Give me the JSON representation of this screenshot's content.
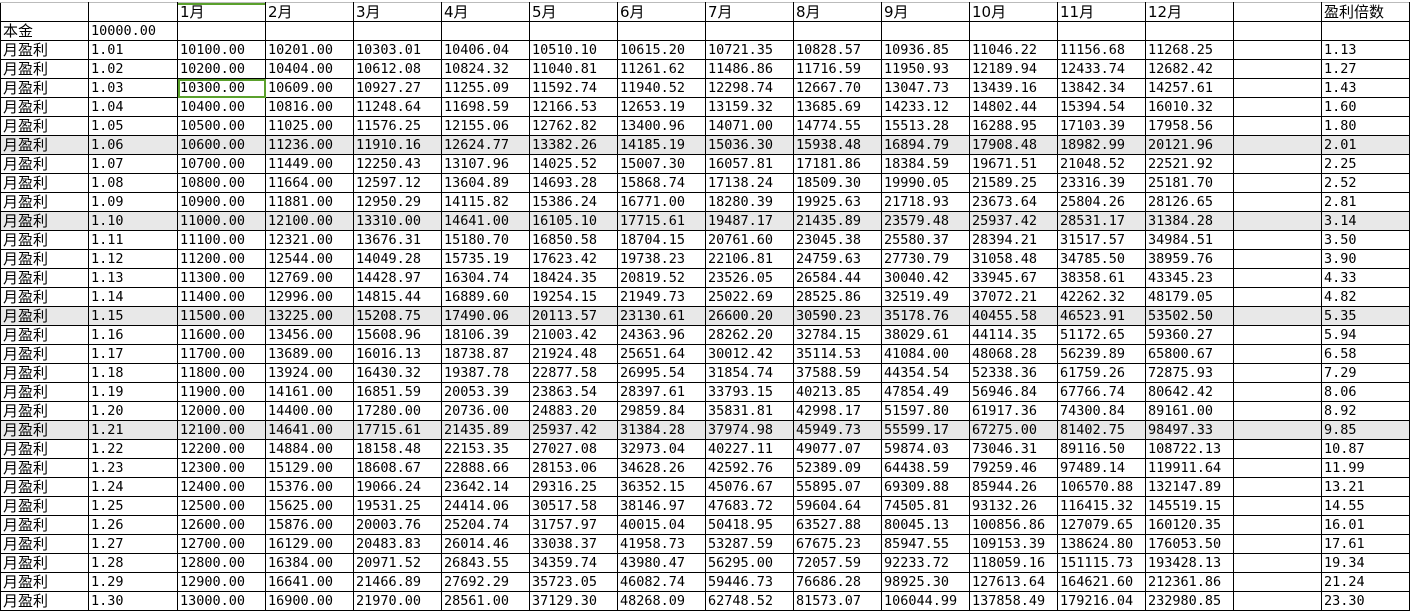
{
  "header": {
    "months": [
      "1月",
      "2月",
      "3月",
      "4月",
      "5月",
      "6月",
      "7月",
      "8月",
      "9月",
      "10月",
      "11月",
      "12月"
    ],
    "multiplier_label": "盈利倍数"
  },
  "principal": {
    "label": "本金",
    "value": "10000.00"
  },
  "row_label": "月盈利",
  "highlight_color": "#e8e8e8",
  "selection_color": "#5aa02c",
  "selected_cell": {
    "rate": "1.03",
    "month": "1月"
  },
  "rows": [
    {
      "rate": "1.01",
      "values": [
        "10100.00",
        "10201.00",
        "10303.01",
        "10406.04",
        "10510.10",
        "10615.20",
        "10721.35",
        "10828.57",
        "10936.85",
        "11046.22",
        "11156.68",
        "11268.25"
      ],
      "multiplier": "1.13",
      "highlighted": false
    },
    {
      "rate": "1.02",
      "values": [
        "10200.00",
        "10404.00",
        "10612.08",
        "10824.32",
        "11040.81",
        "11261.62",
        "11486.86",
        "11716.59",
        "11950.93",
        "12189.94",
        "12433.74",
        "12682.42"
      ],
      "multiplier": "1.27",
      "highlighted": false
    },
    {
      "rate": "1.03",
      "values": [
        "10300.00",
        "10609.00",
        "10927.27",
        "11255.09",
        "11592.74",
        "11940.52",
        "12298.74",
        "12667.70",
        "13047.73",
        "13439.16",
        "13842.34",
        "14257.61"
      ],
      "multiplier": "1.43",
      "highlighted": false
    },
    {
      "rate": "1.04",
      "values": [
        "10400.00",
        "10816.00",
        "11248.64",
        "11698.59",
        "12166.53",
        "12653.19",
        "13159.32",
        "13685.69",
        "14233.12",
        "14802.44",
        "15394.54",
        "16010.32"
      ],
      "multiplier": "1.60",
      "highlighted": false
    },
    {
      "rate": "1.05",
      "values": [
        "10500.00",
        "11025.00",
        "11576.25",
        "12155.06",
        "12762.82",
        "13400.96",
        "14071.00",
        "14774.55",
        "15513.28",
        "16288.95",
        "17103.39",
        "17958.56"
      ],
      "multiplier": "1.80",
      "highlighted": false
    },
    {
      "rate": "1.06",
      "values": [
        "10600.00",
        "11236.00",
        "11910.16",
        "12624.77",
        "13382.26",
        "14185.19",
        "15036.30",
        "15938.48",
        "16894.79",
        "17908.48",
        "18982.99",
        "20121.96"
      ],
      "multiplier": "2.01",
      "highlighted": true
    },
    {
      "rate": "1.07",
      "values": [
        "10700.00",
        "11449.00",
        "12250.43",
        "13107.96",
        "14025.52",
        "15007.30",
        "16057.81",
        "17181.86",
        "18384.59",
        "19671.51",
        "21048.52",
        "22521.92"
      ],
      "multiplier": "2.25",
      "highlighted": false
    },
    {
      "rate": "1.08",
      "values": [
        "10800.00",
        "11664.00",
        "12597.12",
        "13604.89",
        "14693.28",
        "15868.74",
        "17138.24",
        "18509.30",
        "19990.05",
        "21589.25",
        "23316.39",
        "25181.70"
      ],
      "multiplier": "2.52",
      "highlighted": false
    },
    {
      "rate": "1.09",
      "values": [
        "10900.00",
        "11881.00",
        "12950.29",
        "14115.82",
        "15386.24",
        "16771.00",
        "18280.39",
        "19925.63",
        "21718.93",
        "23673.64",
        "25804.26",
        "28126.65"
      ],
      "multiplier": "2.81",
      "highlighted": false
    },
    {
      "rate": "1.10",
      "values": [
        "11000.00",
        "12100.00",
        "13310.00",
        "14641.00",
        "16105.10",
        "17715.61",
        "19487.17",
        "21435.89",
        "23579.48",
        "25937.42",
        "28531.17",
        "31384.28"
      ],
      "multiplier": "3.14",
      "highlighted": true
    },
    {
      "rate": "1.11",
      "values": [
        "11100.00",
        "12321.00",
        "13676.31",
        "15180.70",
        "16850.58",
        "18704.15",
        "20761.60",
        "23045.38",
        "25580.37",
        "28394.21",
        "31517.57",
        "34984.51"
      ],
      "multiplier": "3.50",
      "highlighted": false
    },
    {
      "rate": "1.12",
      "values": [
        "11200.00",
        "12544.00",
        "14049.28",
        "15735.19",
        "17623.42",
        "19738.23",
        "22106.81",
        "24759.63",
        "27730.79",
        "31058.48",
        "34785.50",
        "38959.76"
      ],
      "multiplier": "3.90",
      "highlighted": false
    },
    {
      "rate": "1.13",
      "values": [
        "11300.00",
        "12769.00",
        "14428.97",
        "16304.74",
        "18424.35",
        "20819.52",
        "23526.05",
        "26584.44",
        "30040.42",
        "33945.67",
        "38358.61",
        "43345.23"
      ],
      "multiplier": "4.33",
      "highlighted": false
    },
    {
      "rate": "1.14",
      "values": [
        "11400.00",
        "12996.00",
        "14815.44",
        "16889.60",
        "19254.15",
        "21949.73",
        "25022.69",
        "28525.86",
        "32519.49",
        "37072.21",
        "42262.32",
        "48179.05"
      ],
      "multiplier": "4.82",
      "highlighted": false
    },
    {
      "rate": "1.15",
      "values": [
        "11500.00",
        "13225.00",
        "15208.75",
        "17490.06",
        "20113.57",
        "23130.61",
        "26600.20",
        "30590.23",
        "35178.76",
        "40455.58",
        "46523.91",
        "53502.50"
      ],
      "multiplier": "5.35",
      "highlighted": true
    },
    {
      "rate": "1.16",
      "values": [
        "11600.00",
        "13456.00",
        "15608.96",
        "18106.39",
        "21003.42",
        "24363.96",
        "28262.20",
        "32784.15",
        "38029.61",
        "44114.35",
        "51172.65",
        "59360.27"
      ],
      "multiplier": "5.94",
      "highlighted": false
    },
    {
      "rate": "1.17",
      "values": [
        "11700.00",
        "13689.00",
        "16016.13",
        "18738.87",
        "21924.48",
        "25651.64",
        "30012.42",
        "35114.53",
        "41084.00",
        "48068.28",
        "56239.89",
        "65800.67"
      ],
      "multiplier": "6.58",
      "highlighted": false
    },
    {
      "rate": "1.18",
      "values": [
        "11800.00",
        "13924.00",
        "16430.32",
        "19387.78",
        "22877.58",
        "26995.54",
        "31854.74",
        "37588.59",
        "44354.54",
        "52338.36",
        "61759.26",
        "72875.93"
      ],
      "multiplier": "7.29",
      "highlighted": false
    },
    {
      "rate": "1.19",
      "values": [
        "11900.00",
        "14161.00",
        "16851.59",
        "20053.39",
        "23863.54",
        "28397.61",
        "33793.15",
        "40213.85",
        "47854.49",
        "56946.84",
        "67766.74",
        "80642.42"
      ],
      "multiplier": "8.06",
      "highlighted": false
    },
    {
      "rate": "1.20",
      "values": [
        "12000.00",
        "14400.00",
        "17280.00",
        "20736.00",
        "24883.20",
        "29859.84",
        "35831.81",
        "42998.17",
        "51597.80",
        "61917.36",
        "74300.84",
        "89161.00"
      ],
      "multiplier": "8.92",
      "highlighted": false
    },
    {
      "rate": "1.21",
      "values": [
        "12100.00",
        "14641.00",
        "17715.61",
        "21435.89",
        "25937.42",
        "31384.28",
        "37974.98",
        "45949.73",
        "55599.17",
        "67275.00",
        "81402.75",
        "98497.33"
      ],
      "multiplier": "9.85",
      "highlighted": true
    },
    {
      "rate": "1.22",
      "values": [
        "12200.00",
        "14884.00",
        "18158.48",
        "22153.35",
        "27027.08",
        "32973.04",
        "40227.11",
        "49077.07",
        "59874.03",
        "73046.31",
        "89116.50",
        "108722.13"
      ],
      "multiplier": "10.87",
      "highlighted": false
    },
    {
      "rate": "1.23",
      "values": [
        "12300.00",
        "15129.00",
        "18608.67",
        "22888.66",
        "28153.06",
        "34628.26",
        "42592.76",
        "52389.09",
        "64438.59",
        "79259.46",
        "97489.14",
        "119911.64"
      ],
      "multiplier": "11.99",
      "highlighted": false
    },
    {
      "rate": "1.24",
      "values": [
        "12400.00",
        "15376.00",
        "19066.24",
        "23642.14",
        "29316.25",
        "36352.15",
        "45076.67",
        "55895.07",
        "69309.88",
        "85944.26",
        "106570.88",
        "132147.89"
      ],
      "multiplier": "13.21",
      "highlighted": false
    },
    {
      "rate": "1.25",
      "values": [
        "12500.00",
        "15625.00",
        "19531.25",
        "24414.06",
        "30517.58",
        "38146.97",
        "47683.72",
        "59604.64",
        "74505.81",
        "93132.26",
        "116415.32",
        "145519.15"
      ],
      "multiplier": "14.55",
      "highlighted": false
    },
    {
      "rate": "1.26",
      "values": [
        "12600.00",
        "15876.00",
        "20003.76",
        "25204.74",
        "31757.97",
        "40015.04",
        "50418.95",
        "63527.88",
        "80045.13",
        "100856.86",
        "127079.65",
        "160120.35"
      ],
      "multiplier": "16.01",
      "highlighted": false
    },
    {
      "rate": "1.27",
      "values": [
        "12700.00",
        "16129.00",
        "20483.83",
        "26014.46",
        "33038.37",
        "41958.73",
        "53287.59",
        "67675.23",
        "85947.55",
        "109153.39",
        "138624.80",
        "176053.50"
      ],
      "multiplier": "17.61",
      "highlighted": false
    },
    {
      "rate": "1.28",
      "values": [
        "12800.00",
        "16384.00",
        "20971.52",
        "26843.55",
        "34359.74",
        "43980.47",
        "56295.00",
        "72057.59",
        "92233.72",
        "118059.16",
        "151115.73",
        "193428.13"
      ],
      "multiplier": "19.34",
      "highlighted": false
    },
    {
      "rate": "1.29",
      "values": [
        "12900.00",
        "16641.00",
        "21466.89",
        "27692.29",
        "35723.05",
        "46082.74",
        "59446.73",
        "76686.28",
        "98925.30",
        "127613.64",
        "164621.60",
        "212361.86"
      ],
      "multiplier": "21.24",
      "highlighted": false
    },
    {
      "rate": "1.30",
      "values": [
        "13000.00",
        "16900.00",
        "21970.00",
        "28561.00",
        "37129.30",
        "48268.09",
        "62748.52",
        "81573.07",
        "106044.99",
        "137858.49",
        "179216.04",
        "232980.85"
      ],
      "multiplier": "23.30",
      "highlighted": false
    }
  ]
}
